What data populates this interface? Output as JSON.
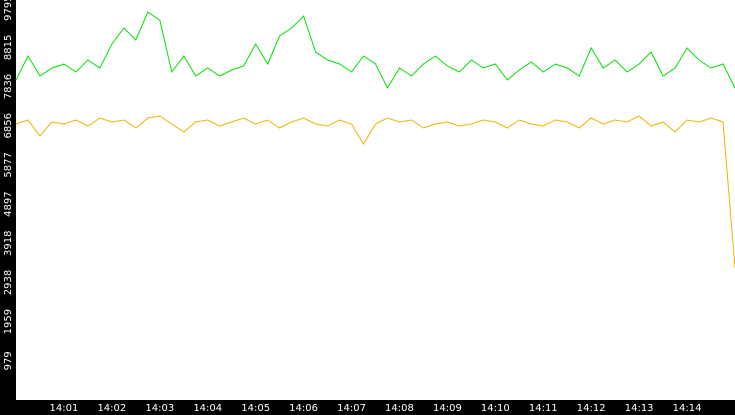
{
  "chart_data": {
    "type": "line",
    "categories": [
      null,
      null,
      null,
      null,
      "14:01",
      null,
      null,
      null,
      "14:02",
      null,
      null,
      null,
      "14:03",
      null,
      null,
      null,
      "14:04",
      null,
      null,
      null,
      "14:05",
      null,
      null,
      null,
      "14:06",
      null,
      null,
      null,
      "14:07",
      null,
      null,
      null,
      "14:08",
      null,
      null,
      null,
      "14:09",
      null,
      null,
      null,
      "14:10",
      null,
      null,
      null,
      "14:11",
      null,
      null,
      null,
      "14:12",
      null,
      null,
      null,
      "14:13",
      null,
      null,
      null,
      "14:14",
      null,
      null,
      null,
      null
    ],
    "series": [
      {
        "color": "#00e000",
        "values": [
          8000,
          8600,
          8100,
          8300,
          8400,
          8200,
          8500,
          8300,
          8900,
          9300,
          9000,
          9700,
          9500,
          8200,
          8600,
          8100,
          8300,
          8100,
          8250,
          8350,
          8900,
          8400,
          9100,
          9300,
          9600,
          8700,
          8500,
          8400,
          8200,
          8600,
          8400,
          7800,
          8300,
          8100,
          8400,
          8600,
          8350,
          8200,
          8500,
          8300,
          8400,
          8000,
          8250,
          8450,
          8200,
          8400,
          8300,
          8100,
          8800,
          8300,
          8500,
          8200,
          8400,
          8700,
          8100,
          8300,
          8800,
          8500,
          8300,
          8400,
          7800
        ]
      },
      {
        "color": "#f0b400",
        "values": [
          6900,
          7000,
          6600,
          6950,
          6900,
          7000,
          6850,
          7050,
          6950,
          7000,
          6800,
          7050,
          7100,
          6900,
          6700,
          6950,
          7000,
          6850,
          6950,
          7050,
          6900,
          7000,
          6800,
          6950,
          7050,
          6900,
          6850,
          7000,
          6900,
          6400,
          6900,
          7050,
          6950,
          7000,
          6800,
          6900,
          6950,
          6850,
          6900,
          7000,
          6950,
          6800,
          7000,
          6900,
          6850,
          7000,
          6950,
          6800,
          7050,
          6900,
          7000,
          6950,
          7100,
          6850,
          6950,
          6700,
          7000,
          6950,
          7050,
          6950,
          3300
        ]
      }
    ],
    "ylim": [
      0,
      10000
    ],
    "yticks": [
      979,
      1959,
      2938,
      3918,
      4897,
      5877,
      6856,
      7836,
      8815,
      9795
    ]
  }
}
